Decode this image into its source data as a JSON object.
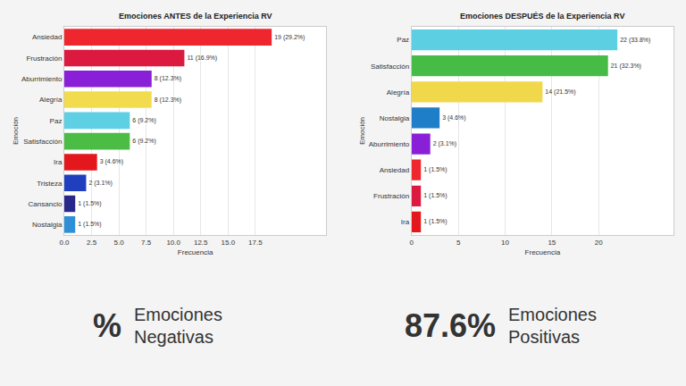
{
  "chart_data": [
    {
      "type": "bar",
      "orientation": "horizontal",
      "title": "Emociones ANTES de la Experiencia RV",
      "xlabel": "Frecuencia",
      "ylabel": "Emoción",
      "categories": [
        "Ansiedad",
        "Frustración",
        "Aburrimiento",
        "Alegría",
        "Paz",
        "Satisfacción",
        "Ira",
        "Tristeza",
        "Cansancio",
        "Nostalgia"
      ],
      "values": [
        19,
        11,
        8,
        8,
        6,
        6,
        3,
        2,
        1,
        1
      ],
      "value_labels": [
        "19 (29.2%)",
        "11 (16.9%)",
        "8 (12.3%)",
        "8 (12.3%)",
        "6 (9.2%)",
        "6 (9.2%)",
        "3 (4.6%)",
        "2 (3.1%)",
        "1 (1.5%)",
        "1 (1.5%)"
      ],
      "colors": [
        "#f0262e",
        "#dc1a40",
        "#8a1fd8",
        "#f2dc4e",
        "#5fd0e4",
        "#4cbd44",
        "#e4181c",
        "#1f3fbf",
        "#28288a",
        "#2f8fd6"
      ],
      "xlim": [
        0,
        24
      ],
      "xticks": [
        {
          "value": 0,
          "label": "0.0"
        },
        {
          "value": 2.5,
          "label": "2.5"
        },
        {
          "value": 5,
          "label": "5.0"
        },
        {
          "value": 7.5,
          "label": "7.5"
        },
        {
          "value": 10,
          "label": "10.0"
        },
        {
          "value": 12.5,
          "label": "12.5"
        },
        {
          "value": 15,
          "label": "15.0"
        },
        {
          "value": 17.5,
          "label": "17.5"
        }
      ],
      "grid": true,
      "data_labels": true
    },
    {
      "type": "bar",
      "orientation": "horizontal",
      "title": "Emociones DESPUÉS de la Experiencia RV",
      "xlabel": "Frecuencia",
      "ylabel": "Emoción",
      "categories": [
        "Paz",
        "Satisfacción",
        "Alegría",
        "Nostalgia",
        "Aburrimiento",
        "Ansiedad",
        "Frustración",
        "Ira"
      ],
      "values": [
        22,
        21,
        14,
        3,
        2,
        1,
        1,
        1
      ],
      "value_labels": [
        "22 (33.8%)",
        "21 (32.3%)",
        "14 (21.5%)",
        "3 (4.6%)",
        "2 (3.1%)",
        "1 (1.5%)",
        "1 (1.5%)",
        "1 (1.5%)"
      ],
      "colors": [
        "#5ccfe2",
        "#46bb46",
        "#f0d84a",
        "#1f7ec8",
        "#8a1fd8",
        "#f0262e",
        "#dc1a40",
        "#e4181c"
      ],
      "xlim": [
        0,
        28
      ],
      "xticks": [
        0,
        5,
        10,
        15,
        20
      ],
      "grid": true,
      "data_labels": true
    }
  ],
  "summary": [
    {
      "value": "%",
      "label": "Emociones Negativas"
    },
    {
      "value": "87.6%",
      "label": "Emociones Positivas"
    }
  ]
}
